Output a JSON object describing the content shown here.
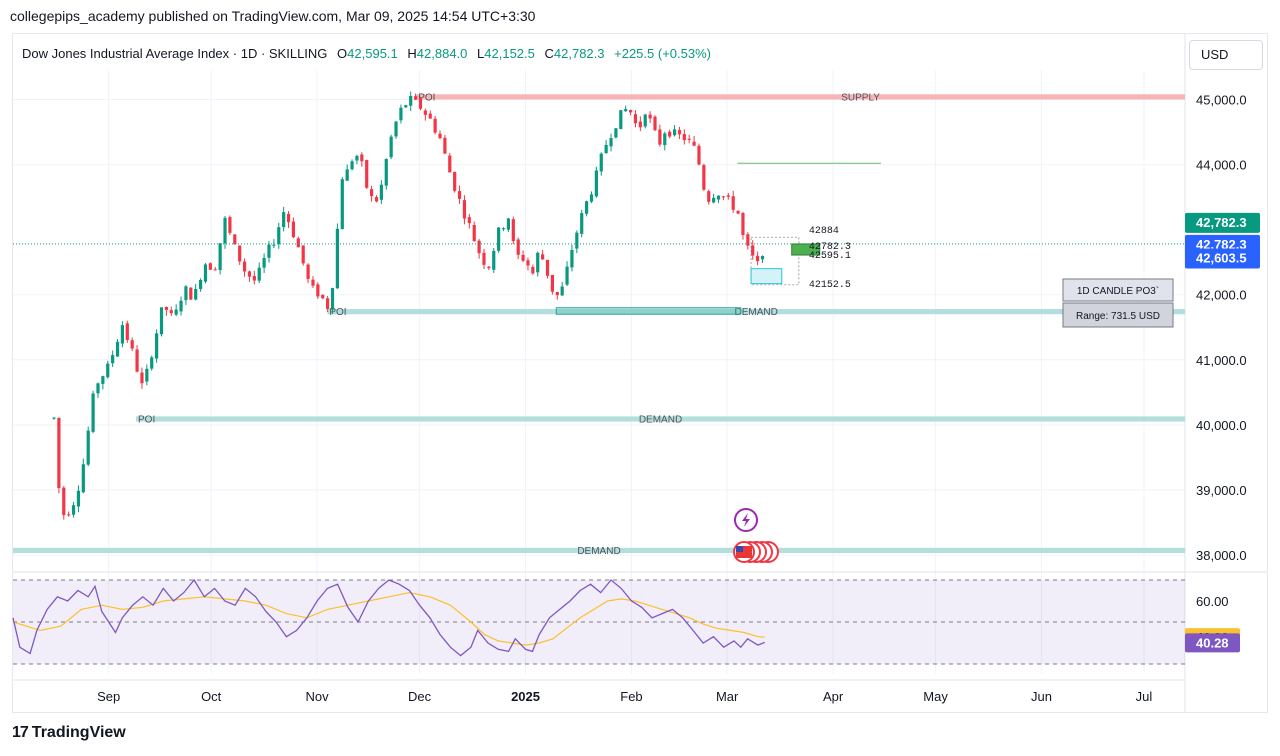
{
  "header": {
    "publisher_line": "collegepips_academy published on TradingView.com, Mar 09, 2025 14:54 UTC+3:30"
  },
  "legend": {
    "symbol": "Dow Jones Industrial Average Index · 1D · SKILLING",
    "o_label": "O",
    "o_value": "42,595.1",
    "h_label": "H",
    "h_value": "42,884.0",
    "l_label": "L",
    "l_value": "42,152.5",
    "c_label": "C",
    "c_value": "42,782.3",
    "change": "+225.5 (+0.53%)"
  },
  "currency": "USD",
  "footer": {
    "brand": "TradingView",
    "logo_glyph": "17"
  },
  "colors": {
    "up": "#089981",
    "down": "#f23645",
    "rsi": "#7e57c2",
    "rsi_ma": "#fbc02d",
    "zone_demand": "#b2dfdb",
    "zone_supply": "#f8b4b4"
  },
  "chart_data": {
    "type": "candlestick",
    "ylim": [
      37800,
      45300
    ],
    "yticks": [
      {
        "value": 45000,
        "label": "45,000.0"
      },
      {
        "value": 44000,
        "label": "44,000.0"
      },
      {
        "value": 42000,
        "label": "42,000.0"
      },
      {
        "value": 41000,
        "label": "41,000.0"
      },
      {
        "value": 40000,
        "label": "40,000.0"
      },
      {
        "value": 39000,
        "label": "39,000.0"
      },
      {
        "value": 38000,
        "label": "38,000.0"
      }
    ],
    "xticks": [
      {
        "label": "Sep",
        "day": 24,
        "bold": false
      },
      {
        "label": "Oct",
        "day": 54,
        "bold": false
      },
      {
        "label": "Nov",
        "day": 85,
        "bold": false
      },
      {
        "label": "Dec",
        "day": 115,
        "bold": false
      },
      {
        "label": "2025",
        "day": 146,
        "bold": true
      },
      {
        "label": "Feb",
        "day": 177,
        "bold": false
      },
      {
        "label": "Mar",
        "day": 205,
        "bold": false
      },
      {
        "label": "Apr",
        "day": 236,
        "bold": false
      },
      {
        "label": "May",
        "day": 266,
        "bold": false
      },
      {
        "label": "Jun",
        "day": 297,
        "bold": false
      },
      {
        "label": "Jul",
        "day": 327,
        "bold": false
      }
    ],
    "xrange_days": [
      -4,
      339
    ],
    "price_path": [
      [
        8,
        40100
      ],
      [
        10,
        38600
      ],
      [
        13,
        38700
      ],
      [
        16,
        39200
      ],
      [
        20,
        40600
      ],
      [
        24,
        40900
      ],
      [
        28,
        41550
      ],
      [
        31,
        41100
      ],
      [
        34,
        40550
      ],
      [
        37,
        41200
      ],
      [
        40,
        41850
      ],
      [
        43,
        41600
      ],
      [
        46,
        42100
      ],
      [
        49,
        41950
      ],
      [
        52,
        42500
      ],
      [
        55,
        42400
      ],
      [
        58,
        43150
      ],
      [
        61,
        42700
      ],
      [
        64,
        42350
      ],
      [
        67,
        42200
      ],
      [
        70,
        42600
      ],
      [
        73,
        42900
      ],
      [
        75,
        43300
      ],
      [
        77,
        43100
      ],
      [
        80,
        42650
      ],
      [
        83,
        42100
      ],
      [
        86,
        42000
      ],
      [
        88,
        41800
      ],
      [
        90,
        42300
      ],
      [
        92,
        43800
      ],
      [
        94,
        43900
      ],
      [
        96,
        44200
      ],
      [
        98,
        44000
      ],
      [
        100,
        43550
      ],
      [
        102,
        43400
      ],
      [
        104,
        43700
      ],
      [
        106,
        44300
      ],
      [
        109,
        44800
      ],
      [
        112,
        45000
      ],
      [
        115,
        44900
      ],
      [
        118,
        44700
      ],
      [
        121,
        44400
      ],
      [
        124,
        43850
      ],
      [
        127,
        43400
      ],
      [
        130,
        43000
      ],
      [
        132,
        42700
      ],
      [
        135,
        42400
      ],
      [
        138,
        42950
      ],
      [
        141,
        43200
      ],
      [
        143,
        42600
      ],
      [
        146,
        42550
      ],
      [
        148,
        42300
      ],
      [
        150,
        42700
      ],
      [
        152,
        42400
      ],
      [
        154,
        42050
      ],
      [
        156,
        41950
      ],
      [
        158,
        42350
      ],
      [
        160,
        42800
      ],
      [
        163,
        43300
      ],
      [
        166,
        43700
      ],
      [
        169,
        44250
      ],
      [
        172,
        44600
      ],
      [
        175,
        44850
      ],
      [
        177,
        44800
      ],
      [
        179,
        44500
      ],
      [
        181,
        44850
      ],
      [
        183,
        44600
      ],
      [
        185,
        44300
      ],
      [
        187,
        44550
      ],
      [
        190,
        44450
      ],
      [
        193,
        44400
      ],
      [
        196,
        44200
      ],
      [
        199,
        43450
      ],
      [
        202,
        43600
      ],
      [
        205,
        43450
      ],
      [
        208,
        43300
      ],
      [
        210,
        42800
      ],
      [
        212,
        42600
      ],
      [
        214,
        42450
      ],
      [
        216,
        42783
      ]
    ],
    "rsi": {
      "range": [
        0,
        100
      ],
      "levels": [
        70,
        50,
        30
      ],
      "labels": [
        {
          "value": 60.0,
          "label": "60.00",
          "bg": "none",
          "color": "#131722"
        },
        {
          "value": 42.82,
          "label": "42.82",
          "bg": "#fbc02d",
          "color": "#131722"
        },
        {
          "value": 40.28,
          "label": "40.28",
          "bg": "#7e57c2",
          "color": "#ffffff"
        }
      ],
      "path": [
        [
          -4,
          52
        ],
        [
          -2,
          38
        ],
        [
          1,
          35
        ],
        [
          3,
          46
        ],
        [
          6,
          56
        ],
        [
          9,
          62
        ],
        [
          12,
          60
        ],
        [
          15,
          65
        ],
        [
          18,
          62
        ],
        [
          20,
          67
        ],
        [
          22,
          55
        ],
        [
          24,
          50
        ],
        [
          26,
          45
        ],
        [
          28,
          52
        ],
        [
          31,
          58
        ],
        [
          34,
          62
        ],
        [
          37,
          58
        ],
        [
          40,
          66
        ],
        [
          43,
          60
        ],
        [
          46,
          64
        ],
        [
          49,
          70
        ],
        [
          52,
          62
        ],
        [
          55,
          66
        ],
        [
          58,
          60
        ],
        [
          61,
          58
        ],
        [
          64,
          66
        ],
        [
          67,
          62
        ],
        [
          70,
          55
        ],
        [
          73,
          50
        ],
        [
          76,
          43
        ],
        [
          79,
          46
        ],
        [
          82,
          52
        ],
        [
          85,
          60
        ],
        [
          88,
          66
        ],
        [
          91,
          68
        ],
        [
          94,
          57
        ],
        [
          97,
          50
        ],
        [
          100,
          60
        ],
        [
          103,
          66
        ],
        [
          106,
          70
        ],
        [
          109,
          68
        ],
        [
          112,
          65
        ],
        [
          115,
          58
        ],
        [
          118,
          52
        ],
        [
          121,
          44
        ],
        [
          124,
          38
        ],
        [
          127,
          34
        ],
        [
          130,
          38
        ],
        [
          132,
          46
        ],
        [
          135,
          40
        ],
        [
          138,
          37
        ],
        [
          141,
          36
        ],
        [
          143,
          42
        ],
        [
          146,
          37
        ],
        [
          148,
          36
        ],
        [
          150,
          44
        ],
        [
          153,
          52
        ],
        [
          156,
          56
        ],
        [
          159,
          60
        ],
        [
          162,
          65
        ],
        [
          165,
          68
        ],
        [
          168,
          64
        ],
        [
          171,
          70
        ],
        [
          174,
          66
        ],
        [
          177,
          60
        ],
        [
          180,
          57
        ],
        [
          183,
          52
        ],
        [
          186,
          54
        ],
        [
          189,
          56
        ],
        [
          192,
          52
        ],
        [
          195,
          46
        ],
        [
          198,
          40
        ],
        [
          201,
          43
        ],
        [
          204,
          38
        ],
        [
          207,
          41
        ],
        [
          209,
          38
        ],
        [
          211,
          42
        ],
        [
          214,
          39
        ],
        [
          216,
          40.28
        ]
      ],
      "ma_path": [
        [
          -4,
          50
        ],
        [
          4,
          46
        ],
        [
          10,
          48
        ],
        [
          16,
          56
        ],
        [
          22,
          58
        ],
        [
          28,
          56
        ],
        [
          34,
          57
        ],
        [
          40,
          60
        ],
        [
          46,
          61
        ],
        [
          52,
          62
        ],
        [
          58,
          61
        ],
        [
          64,
          60
        ],
        [
          70,
          58
        ],
        [
          76,
          54
        ],
        [
          82,
          52
        ],
        [
          88,
          56
        ],
        [
          94,
          58
        ],
        [
          100,
          60
        ],
        [
          106,
          62
        ],
        [
          112,
          64
        ],
        [
          118,
          62
        ],
        [
          124,
          58
        ],
        [
          130,
          50
        ],
        [
          134,
          44
        ],
        [
          138,
          41
        ],
        [
          142,
          40
        ],
        [
          146,
          39
        ],
        [
          150,
          40
        ],
        [
          154,
          42
        ],
        [
          158,
          47
        ],
        [
          162,
          52
        ],
        [
          166,
          56
        ],
        [
          170,
          60
        ],
        [
          174,
          61
        ],
        [
          178,
          60
        ],
        [
          182,
          58
        ],
        [
          186,
          56
        ],
        [
          190,
          54
        ],
        [
          194,
          52
        ],
        [
          198,
          49
        ],
        [
          202,
          47
        ],
        [
          206,
          46
        ],
        [
          210,
          45
        ],
        [
          214,
          43
        ],
        [
          216,
          42.82
        ]
      ]
    },
    "zones": [
      {
        "kind": "supply",
        "left_label": "POI",
        "center_label": "SUPPLY",
        "y_low": 45000,
        "y_high": 45080,
        "x_start": 114,
        "x_end": 339
      },
      {
        "kind": "demand",
        "left_label": "POI",
        "center_label": "DEMAND",
        "y_low": 41700,
        "y_high": 41780,
        "x_start": 88,
        "x_end": 339
      },
      {
        "kind": "demand",
        "left_label": "POI",
        "center_label": "DEMAND",
        "y_low": 40050,
        "y_high": 40130,
        "x_start": 32,
        "x_end": 339
      },
      {
        "kind": "demand",
        "left_label": "",
        "center_label": "DEMAND",
        "y_low": 38030,
        "y_high": 38110,
        "x_start": -4,
        "x_end": 339
      }
    ],
    "demand_box": {
      "y_low": 41700,
      "y_high": 41800,
      "x_start": 155,
      "x_end": 209
    },
    "green_target_line": {
      "y": 44020,
      "x_start": 208,
      "x_end": 250
    },
    "projection": {
      "labels": [
        {
          "value": 42884,
          "text": "42884"
        },
        {
          "value": 42782.3,
          "text": "42782.3"
        },
        {
          "value": 42595.1,
          "text": "42595.1"
        },
        {
          "value": 42152.5,
          "text": "42152.5"
        }
      ],
      "box_high": 42884,
      "box_low": 42152.5,
      "box_x_start": 212,
      "box_x_end": 226,
      "green_candle": {
        "open": 42610,
        "close": 42780,
        "x": 228
      },
      "cyan_box": {
        "high": 42400,
        "low": 42170,
        "x_start": 212,
        "x_end": 221
      }
    },
    "price_labels": [
      {
        "value": 42782.3,
        "text": "42,782.3",
        "bg": "#089981"
      },
      {
        "value": 42782.3,
        "text": "42,782.3",
        "bg": "#2962ff",
        "offset": 1
      },
      {
        "value": 42603.5,
        "text": "42,603.5",
        "bg": "#2962ff",
        "offset": 2
      }
    ],
    "info_box": {
      "title": "1D CANDLE PO3`",
      "range": "Range: 731.5 USD"
    },
    "events": {
      "flash_icon": "lightning-icon",
      "flag_icon": "us-flag-icon"
    }
  }
}
